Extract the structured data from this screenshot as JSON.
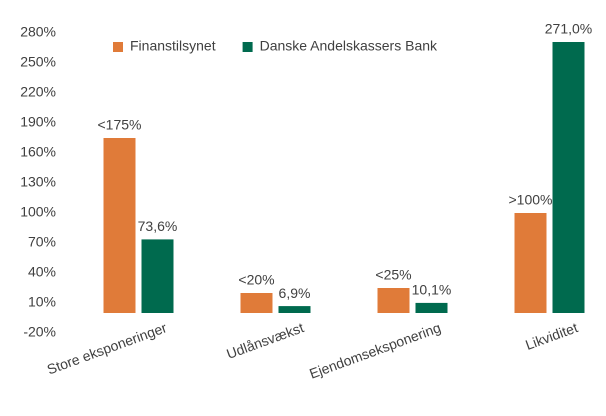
{
  "chart_data": {
    "type": "bar",
    "categories": [
      "Store eksponeringer",
      "Udlånsvækst",
      "Ejendomseksponering",
      "Likviditet"
    ],
    "series": [
      {
        "name": "Finanstilsynet",
        "color": "#e07b39",
        "values": [
          175,
          20,
          25,
          100
        ],
        "value_labels": [
          "<175%",
          "<20%",
          "<25%",
          ">100%"
        ]
      },
      {
        "name": "Danske Andelskassers Bank",
        "color": "#006a4e",
        "values": [
          73.6,
          6.9,
          10.1,
          271.0
        ],
        "value_labels": [
          "73,6%",
          "6,9%",
          "10,1%",
          "271,0%"
        ]
      }
    ],
    "ylim": [
      -20,
      280
    ],
    "yticks": [
      {
        "value": -20,
        "label": "-20%"
      },
      {
        "value": 10,
        "label": "10%"
      },
      {
        "value": 40,
        "label": "40%"
      },
      {
        "value": 70,
        "label": "70%"
      },
      {
        "value": 100,
        "label": "100%"
      },
      {
        "value": 130,
        "label": "130%"
      },
      {
        "value": 160,
        "label": "160%"
      },
      {
        "value": 190,
        "label": "190%"
      },
      {
        "value": 220,
        "label": "220%"
      },
      {
        "value": 250,
        "label": "250%"
      },
      {
        "value": 280,
        "label": "280%"
      }
    ],
    "grid": false,
    "legend": "top"
  }
}
